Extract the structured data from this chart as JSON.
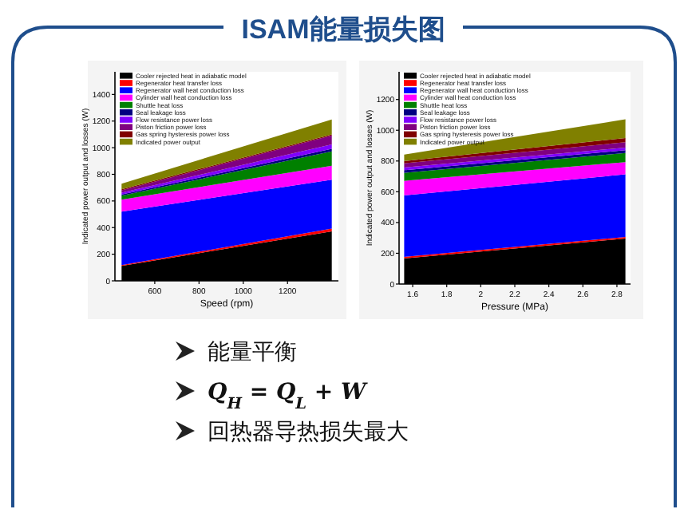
{
  "chart_data": [
    {
      "type": "other",
      "title": "ISAM能量损失图",
      "annotations": [
        "能量平衡",
        "Q$_{H}$ = Q$_{L}$ + W",
        "回热器导热损失最大"
      ]
    },
    {
      "type": "area",
      "stacked": true,
      "xlabel": "Speed (rpm)",
      "ylabel": "Indicated power output and losses (W)",
      "x": [
        450,
        1400
      ],
      "xlim": [
        420,
        1430
      ],
      "ylim": [
        0,
        1570
      ],
      "xticks": [
        600,
        800,
        1000,
        1200
      ],
      "yticks": [
        0,
        200,
        400,
        600,
        800,
        1000,
        1200,
        1400
      ],
      "legend": "top left",
      "series": [
        {
          "name": "Cooler rejected heat in adiabatic model",
          "color": "#000000",
          "values": [
            112,
            372
          ]
        },
        {
          "name": "Regenerator heat transfer loss",
          "color": "#ff0000",
          "values": [
            6,
            20
          ]
        },
        {
          "name": "Regenerator wall heat conduction loss",
          "color": "#0000ff",
          "values": [
            402,
            368
          ]
        },
        {
          "name": "Cylinder wall heat conduction loss",
          "color": "#ff00ff",
          "values": [
            90,
            104
          ]
        },
        {
          "name": "Shuttle heat loss",
          "color": "#008000",
          "values": [
            30,
            108
          ]
        },
        {
          "name": "Seal leakage loss",
          "color": "#000080",
          "values": [
            8,
            20
          ]
        },
        {
          "name": "Flow resistance power loss",
          "color": "#8000ff",
          "values": [
            14,
            32
          ]
        },
        {
          "name": "Piston friction power loss",
          "color": "#800080",
          "values": [
            18,
            68
          ]
        },
        {
          "name": "Gas spring hysteresis power loss",
          "color": "#800000",
          "values": [
            8,
            8
          ]
        },
        {
          "name": "Indicated power output",
          "color": "#808000",
          "values": [
            42,
            112
          ]
        }
      ]
    },
    {
      "type": "area",
      "stacked": true,
      "xlabel": "Pressure (MPa)",
      "ylabel": "Indicated power output and losses (W)",
      "x": [
        1.55,
        2.85
      ],
      "xlim": [
        1.52,
        2.88
      ],
      "ylim": [
        0,
        1380
      ],
      "xticks": [
        1.6,
        1.8,
        2.0,
        2.2,
        2.4,
        2.6,
        2.8
      ],
      "yticks": [
        0,
        200,
        400,
        600,
        800,
        1000,
        1200
      ],
      "legend": "top left",
      "series": [
        {
          "name": "Cooler rejected heat in adiabatic model",
          "color": "#000000",
          "values": [
            167,
            296
          ]
        },
        {
          "name": "Regenerator heat transfer loss",
          "color": "#ff0000",
          "values": [
            10,
            10
          ]
        },
        {
          "name": "Regenerator wall heat conduction loss",
          "color": "#0000ff",
          "values": [
            400,
            407
          ]
        },
        {
          "name": "Cylinder wall heat conduction loss",
          "color": "#ff00ff",
          "values": [
            94,
            80
          ]
        },
        {
          "name": "Shuttle heat loss",
          "color": "#008000",
          "values": [
            52,
            59
          ]
        },
        {
          "name": "Seal leakage loss",
          "color": "#000080",
          "values": [
            17,
            18
          ]
        },
        {
          "name": "Flow resistance power loss",
          "color": "#8000ff",
          "values": [
            18,
            17
          ]
        },
        {
          "name": "Piston friction power loss",
          "color": "#800080",
          "values": [
            27,
            35
          ]
        },
        {
          "name": "Gas spring hysteresis power loss",
          "color": "#800000",
          "values": [
            15,
            28
          ]
        },
        {
          "name": "Indicated power output",
          "color": "#808000",
          "values": [
            42,
            121
          ]
        }
      ]
    }
  ]
}
